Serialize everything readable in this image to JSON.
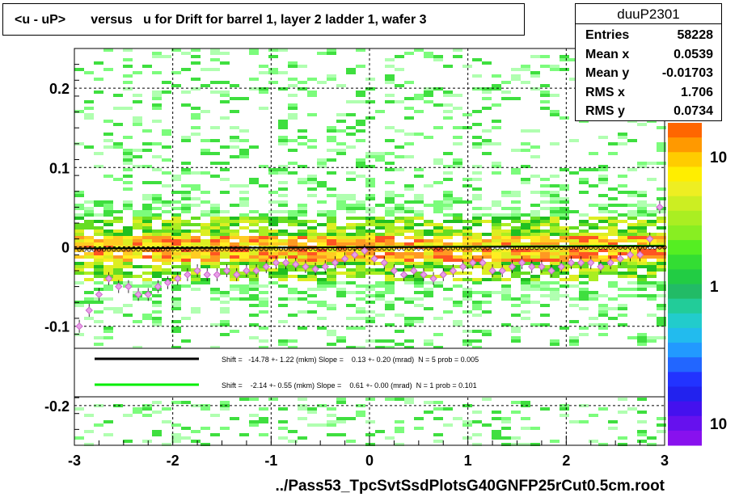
{
  "title": "<u - uP>       versus   u for Drift for barrel 1, layer 2 ladder 1, wafer 3",
  "stats": {
    "name": "duuP2301",
    "rows": [
      {
        "key": "Entries",
        "value": "58228"
      },
      {
        "key": "Mean x",
        "value": "0.0539"
      },
      {
        "key": "Mean y",
        "value": "-0.01703"
      },
      {
        "key": "RMS x",
        "value": "1.706"
      },
      {
        "key": "RMS y",
        "value": "0.0734"
      }
    ]
  },
  "legend": [
    {
      "text": "Shift =   -14.78 +- 1.22 (mkm) Slope =    0.13 +- 0.20 (mrad)  N = 5 prob = 0.005",
      "color": "#000000"
    },
    {
      "text": "Shift =    -2.14 +- 0.55 (mkm) Slope =    0.61 +- 0.00 (mrad)  N = 1 prob = 0.101",
      "color": "#00ee00"
    }
  ],
  "chart_data": {
    "type": "heatmap",
    "title": "<u - uP>       versus   u for Drift for barrel 1, layer 2 ladder 1, wafer 3",
    "xlabel": "../Pass53_TpcSvtSsdPlotsG40GNFP25rCut0.5cm.root",
    "ylabel": "",
    "xlim": [
      -3,
      3
    ],
    "ylim": [
      -0.25,
      0.25
    ],
    "x_ticks": [
      "-3",
      "-2",
      "-1",
      "0",
      "1",
      "2",
      "3"
    ],
    "y_ticks": [
      "-0.2",
      "-0.1",
      "0",
      "0.1",
      "0.2"
    ],
    "x_tick_values": [
      -3,
      -2,
      -1,
      0,
      1,
      2,
      3
    ],
    "y_tick_values": [
      -0.2,
      -0.1,
      0,
      0.1,
      0.2
    ],
    "grid": true,
    "z_scale": "log",
    "z_tick_labels": [
      "10",
      "1",
      "10"
    ],
    "colors": {
      "profile_points": "#cc66cc",
      "fit_black": "#000000",
      "fit_green": "#00ee00"
    },
    "fit_black": {
      "x": [
        -3,
        3
      ],
      "y": [
        -0.002,
        0.001
      ]
    },
    "fit_green": {
      "x": [
        -3,
        3
      ],
      "y": [
        -0.002,
        0.0017
      ]
    },
    "series": [
      {
        "x": [
          -2.95,
          -2.85,
          -2.75,
          -2.65,
          -2.55,
          -2.45,
          -2.35,
          -2.25,
          -2.15,
          -2.05,
          -1.95,
          -1.85,
          -1.75,
          -1.65,
          -1.55,
          -1.45,
          -1.35,
          -1.25,
          -1.15,
          -1.05,
          -0.95,
          -0.85,
          -0.75,
          -0.65,
          -0.55,
          -0.45,
          -0.35,
          -0.25,
          -0.15,
          -0.05,
          0.05,
          0.15,
          0.25,
          0.35,
          0.45,
          0.55,
          0.65,
          0.75,
          0.85,
          0.95,
          1.05,
          1.15,
          1.25,
          1.35,
          1.45,
          1.55,
          1.65,
          1.75,
          1.85,
          1.95,
          2.05,
          2.15,
          2.25,
          2.35,
          2.45,
          2.55,
          2.65,
          2.75,
          2.85,
          2.95
        ],
        "y": [
          -0.1,
          -0.08,
          -0.06,
          -0.04,
          -0.05,
          -0.05,
          -0.06,
          -0.06,
          -0.05,
          -0.045,
          -0.04,
          -0.035,
          -0.03,
          -0.035,
          -0.035,
          -0.03,
          -0.035,
          -0.03,
          -0.03,
          -0.025,
          -0.02,
          -0.02,
          -0.022,
          -0.025,
          -0.028,
          -0.025,
          -0.02,
          -0.015,
          -0.01,
          -0.005,
          -0.015,
          -0.02,
          -0.03,
          -0.035,
          -0.03,
          -0.035,
          -0.04,
          -0.035,
          -0.03,
          -0.025,
          -0.02,
          -0.02,
          -0.03,
          -0.03,
          -0.025,
          -0.02,
          -0.025,
          -0.025,
          -0.03,
          -0.025,
          -0.02,
          -0.02,
          -0.02,
          -0.025,
          -0.02,
          -0.015,
          -0.01,
          -0.01,
          0.01,
          0.05
        ]
      }
    ]
  }
}
